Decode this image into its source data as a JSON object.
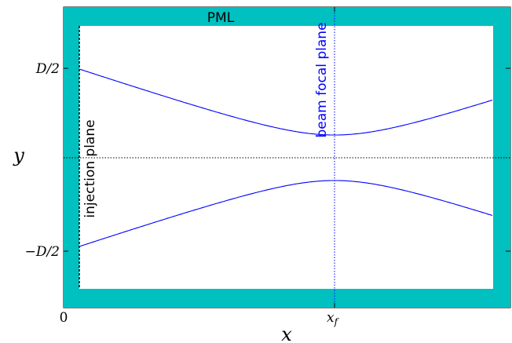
{
  "labels": {
    "pml": "PML",
    "beam_focal_plane": "beam focal plane",
    "injection_plane": "injection plane",
    "x_axis": "x",
    "y_axis": "y",
    "x_tick_zero": "0",
    "x_tick_focus": "x",
    "x_tick_focus_sub": "f",
    "y_tick_top": "D/2",
    "y_tick_bottom": "−D/2"
  },
  "colors": {
    "pml": "#00c0c0",
    "beam": "#0000ff",
    "focal_label": "#0000ff",
    "text": "#000000"
  }
}
